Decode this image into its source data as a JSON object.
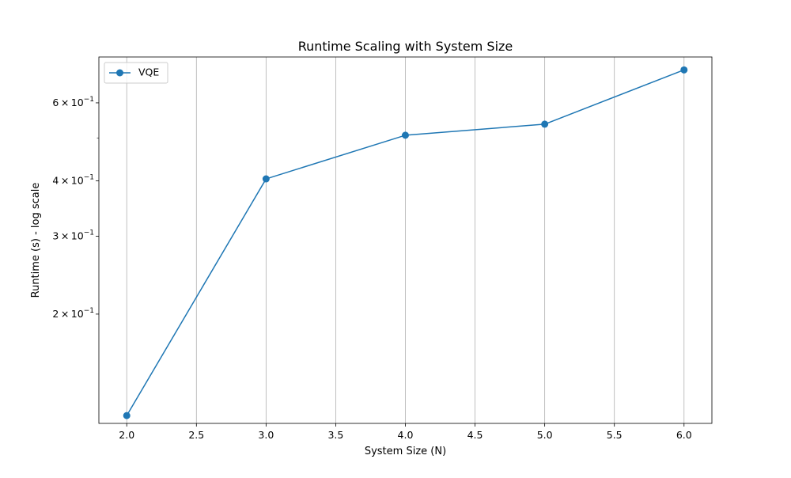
{
  "chart_data": {
    "type": "line",
    "title": "Runtime Scaling with System Size",
    "xlabel": "System Size (N)",
    "ylabel": "Runtime (s) - log scale",
    "yscale": "log",
    "xlim": [
      1.8,
      6.2
    ],
    "ylim": [
      0.1133,
      0.7616
    ],
    "grid": {
      "x": true,
      "y": false
    },
    "legend_location": "upper left",
    "x_ticks": [
      2.0,
      2.5,
      3.0,
      3.5,
      4.0,
      4.5,
      5.0,
      5.5,
      6.0
    ],
    "x_tick_labels": [
      "2.0",
      "2.5",
      "3.0",
      "3.5",
      "4.0",
      "4.5",
      "5.0",
      "5.5",
      "6.0"
    ],
    "y_major_ticks": [
      {
        "value": 0.2,
        "mantissa": "2",
        "exponent": "−1"
      },
      {
        "value": 0.3,
        "mantissa": "3",
        "exponent": "−1"
      },
      {
        "value": 0.4,
        "mantissa": "4",
        "exponent": "−1"
      },
      {
        "value": 0.6,
        "mantissa": "6",
        "exponent": "−1"
      }
    ],
    "y_minor_ticks": [
      0.5
    ],
    "tick_times_symbol": "×",
    "tick_base": "10",
    "series": [
      {
        "name": "VQE",
        "color": "#1f77b4",
        "marker": "circle",
        "x": [
          2.0,
          3.0,
          4.0,
          5.0,
          6.0
        ],
        "y": [
          0.118,
          0.404,
          0.507,
          0.537,
          0.712
        ]
      }
    ]
  }
}
